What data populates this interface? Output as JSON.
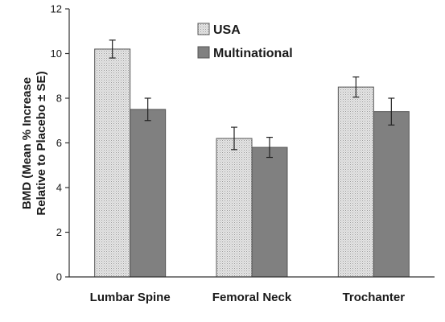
{
  "chart_data": {
    "type": "bar",
    "categories": [
      "Lumbar Spine",
      "Femoral Neck",
      "Trochanter"
    ],
    "series": [
      {
        "name": "USA",
        "values": [
          10.2,
          6.2,
          8.5
        ],
        "errors": [
          0.4,
          0.5,
          0.45
        ],
        "pattern": "dotted",
        "color": "#d9d9d9"
      },
      {
        "name": "Multinational",
        "values": [
          7.5,
          5.8,
          7.4
        ],
        "errors": [
          0.5,
          0.45,
          0.6
        ],
        "pattern": "solid",
        "color": "#808080"
      }
    ],
    "ylabel_line1": "BMD (Mean % Increase",
    "ylabel_line2": "Relative to Placebo ± SE)",
    "ylim": [
      0,
      12
    ],
    "yticks": [
      0,
      2,
      4,
      6,
      8,
      10,
      12
    ],
    "grid": false,
    "legend_position": "top-center"
  }
}
